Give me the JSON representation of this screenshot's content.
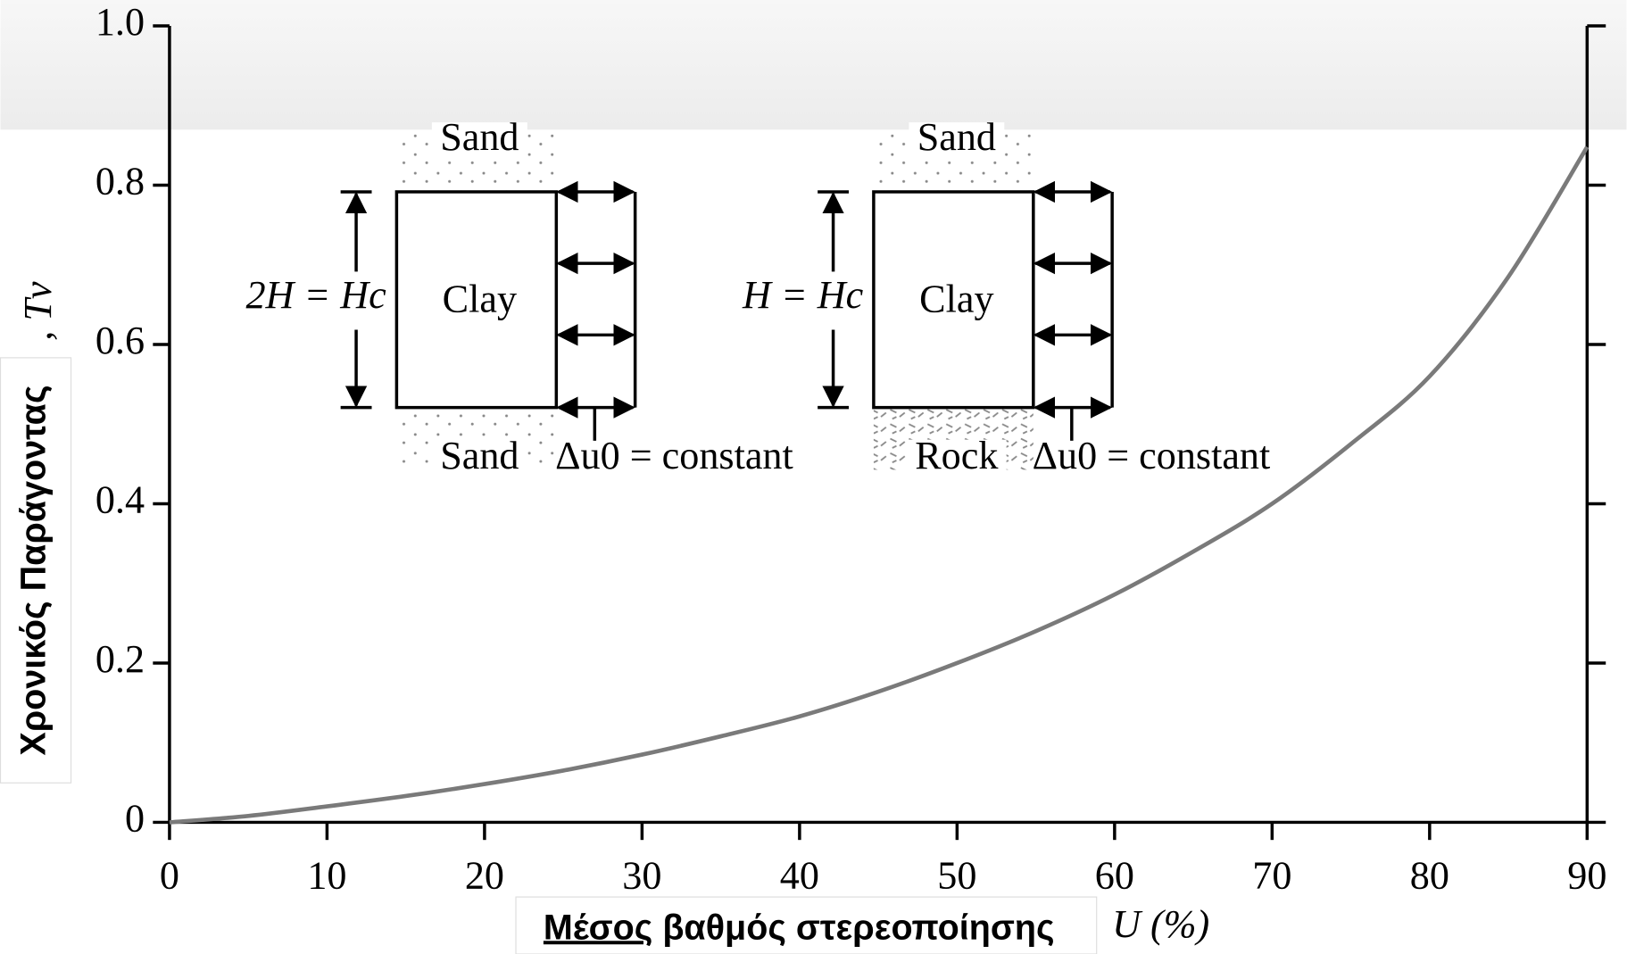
{
  "chart_data": {
    "type": "line",
    "x_label_overlay_underlined": "Μέσος",
    "x_label_overlay_rest": " βαθμός στερεοποίησης",
    "x_label_tail": "U (%)",
    "y_label_overlay": "Χρονικός Παράγοντας",
    "y_label_fragment": ", Tv",
    "x": [
      0,
      5,
      10,
      15,
      20,
      25,
      30,
      35,
      40,
      45,
      50,
      55,
      60,
      65,
      70,
      75,
      80,
      85,
      90
    ],
    "series": [
      {
        "color": "#7a7a7a",
        "values": [
          0,
          0.008,
          0.02,
          0.033,
          0.048,
          0.065,
          0.085,
          0.108,
          0.133,
          0.164,
          0.2,
          0.24,
          0.286,
          0.34,
          0.4,
          0.475,
          0.56,
          0.685,
          0.848
        ]
      }
    ],
    "xlim": [
      0,
      90
    ],
    "xticks": [
      0,
      10,
      20,
      30,
      40,
      50,
      60,
      70,
      80,
      90
    ],
    "ylim": [
      0,
      1
    ],
    "yticks": [
      0,
      0.2,
      0.4,
      0.6,
      0.8,
      {
        "value": 1,
        "label": "1.0"
      }
    ],
    "diagrams": [
      {
        "top": "Sand",
        "middle": "Clay",
        "bottom": "Sand",
        "height_label": "2H = Hc",
        "load_label": "Δu0 = constant"
      },
      {
        "top": "Sand",
        "middle": "Clay",
        "bottom": "Rock",
        "height_label": "H = Hc",
        "load_label": "Δu0 = constant"
      }
    ]
  }
}
